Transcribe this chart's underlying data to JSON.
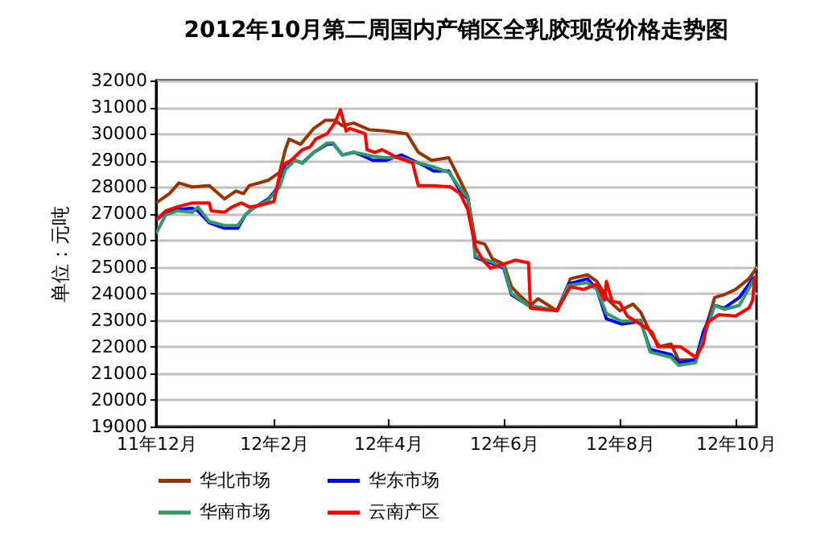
{
  "chart_data": {
    "type": "line",
    "title": "2012年10月第二周国内产销区全乳胶现货价格走势图",
    "ylabel": "单位：元吨",
    "xlim": [
      "2011-12-01",
      "2012-10-12"
    ],
    "xticks": [
      {
        "value": "2011-12-01",
        "label": "11年12月"
      },
      {
        "value": "2012-02-01",
        "label": "12年2月"
      },
      {
        "value": "2012-04-01",
        "label": "12年4月"
      },
      {
        "value": "2012-06-01",
        "label": "12年6月"
      },
      {
        "value": "2012-08-01",
        "label": "12年8月"
      },
      {
        "value": "2012-10-01",
        "label": "12年10月"
      }
    ],
    "ylim": [
      19000,
      32000
    ],
    "yticks": [
      19000,
      20000,
      21000,
      22000,
      23000,
      24000,
      25000,
      26000,
      27000,
      28000,
      29000,
      30000,
      31000,
      32000
    ],
    "grid": "y",
    "legend": "bottom",
    "marker": "none",
    "line_style": "solid",
    "series": [
      {
        "name": "华北市场",
        "color": "#993300",
        "x": [
          "2011-12-01",
          "2011-12-08",
          "2011-12-13",
          "2011-12-20",
          "2011-12-29",
          "2012-01-06",
          "2012-01-12",
          "2012-01-16",
          "2012-01-19",
          "2012-01-29",
          "2012-02-04",
          "2012-02-07",
          "2012-02-09",
          "2012-02-15",
          "2012-02-22",
          "2012-02-28",
          "2012-03-04",
          "2012-03-08",
          "2012-03-14",
          "2012-03-22",
          "2012-03-31",
          "2012-04-11",
          "2012-04-17",
          "2012-04-24",
          "2012-05-03",
          "2012-05-09",
          "2012-05-13",
          "2012-05-17",
          "2012-05-22",
          "2012-05-26",
          "2012-06-01",
          "2012-06-05",
          "2012-06-09",
          "2012-06-15",
          "2012-06-19",
          "2012-06-29",
          "2012-07-03",
          "2012-07-06",
          "2012-07-15",
          "2012-07-20",
          "2012-07-26",
          "2012-08-01",
          "2012-08-08",
          "2012-08-12",
          "2012-08-17",
          "2012-08-22",
          "2012-08-28",
          "2012-09-01",
          "2012-09-10",
          "2012-09-14",
          "2012-09-20",
          "2012-09-25",
          "2012-10-01",
          "2012-10-08",
          "2012-10-12"
        ],
        "values": [
          27400,
          27750,
          28150,
          28000,
          28050,
          27550,
          27850,
          27750,
          28050,
          28250,
          28550,
          29400,
          29800,
          29600,
          30200,
          30500,
          30500,
          30300,
          30400,
          30150,
          30100,
          30000,
          29300,
          29000,
          29100,
          28250,
          27650,
          25950,
          25850,
          25300,
          25100,
          24250,
          23950,
          23550,
          23800,
          23350,
          23900,
          24550,
          24700,
          24450,
          23750,
          23350,
          23600,
          23300,
          22550,
          22000,
          22100,
          21500,
          21500,
          22400,
          23850,
          23950,
          24150,
          24550,
          24950
        ]
      },
      {
        "name": "华东市场",
        "color": "#0000ff",
        "x": [
          "2011-12-01",
          "2011-12-06",
          "2011-12-12",
          "2011-12-20",
          "2011-12-23",
          "2011-12-29",
          "2012-01-06",
          "2012-01-13",
          "2012-01-17",
          "2012-01-20",
          "2012-01-29",
          "2012-02-04",
          "2012-02-07",
          "2012-02-12",
          "2012-02-16",
          "2012-02-22",
          "2012-02-29",
          "2012-03-03",
          "2012-03-08",
          "2012-03-14",
          "2012-03-18",
          "2012-03-24",
          "2012-03-31",
          "2012-04-08",
          "2012-04-14",
          "2012-04-20",
          "2012-04-25",
          "2012-05-03",
          "2012-05-09",
          "2012-05-13",
          "2012-05-16",
          "2012-05-17",
          "2012-05-25",
          "2012-06-01",
          "2012-06-05",
          "2012-06-14",
          "2012-06-29",
          "2012-07-05",
          "2012-07-15",
          "2012-07-20",
          "2012-07-25",
          "2012-08-02",
          "2012-08-12",
          "2012-08-17",
          "2012-08-28",
          "2012-09-01",
          "2012-09-10",
          "2012-09-14",
          "2012-09-20",
          "2012-09-25",
          "2012-10-03",
          "2012-10-10",
          "2012-10-12"
        ],
        "values": [
          26750,
          27050,
          27150,
          27200,
          27100,
          26650,
          26450,
          26450,
          26950,
          27150,
          27550,
          28050,
          28850,
          29000,
          28900,
          29300,
          29600,
          29650,
          29200,
          29300,
          29200,
          29000,
          29000,
          29200,
          29000,
          28800,
          28600,
          28600,
          27850,
          27550,
          26150,
          25350,
          25150,
          24950,
          23950,
          23550,
          23350,
          24350,
          24550,
          24150,
          23050,
          22850,
          22950,
          21900,
          21700,
          21400,
          21500,
          22550,
          23550,
          23450,
          23850,
          24550,
          24650
        ]
      },
      {
        "name": "华南市场",
        "color": "#339966",
        "x": [
          "2011-12-01",
          "2011-12-06",
          "2011-12-12",
          "2011-12-20",
          "2011-12-23",
          "2011-12-29",
          "2012-01-06",
          "2012-01-13",
          "2012-01-17",
          "2012-01-20",
          "2012-01-29",
          "2012-02-04",
          "2012-02-07",
          "2012-02-12",
          "2012-02-16",
          "2012-02-22",
          "2012-02-29",
          "2012-03-03",
          "2012-03-08",
          "2012-03-14",
          "2012-03-18",
          "2012-03-24",
          "2012-03-31",
          "2012-04-08",
          "2012-04-14",
          "2012-04-20",
          "2012-04-25",
          "2012-05-03",
          "2012-05-09",
          "2012-05-13",
          "2012-05-16",
          "2012-05-17",
          "2012-05-25",
          "2012-06-01",
          "2012-06-05",
          "2012-06-14",
          "2012-06-29",
          "2012-07-05",
          "2012-07-15",
          "2012-07-20",
          "2012-07-25",
          "2012-08-02",
          "2012-08-12",
          "2012-08-17",
          "2012-08-28",
          "2012-09-01",
          "2012-09-10",
          "2012-09-14",
          "2012-09-20",
          "2012-09-25",
          "2012-10-03",
          "2012-10-10",
          "2012-10-12"
        ],
        "values": [
          26250,
          26950,
          27100,
          27050,
          27250,
          26700,
          26550,
          26550,
          26950,
          27150,
          27500,
          28000,
          28650,
          29000,
          28900,
          29300,
          29650,
          29650,
          29200,
          29300,
          29250,
          29150,
          29100,
          29100,
          28950,
          28850,
          28750,
          28550,
          27950,
          27600,
          26200,
          25400,
          25200,
          25000,
          24000,
          23550,
          23350,
          24300,
          24400,
          24150,
          23250,
          22950,
          23000,
          21800,
          21600,
          21300,
          21400,
          22300,
          23550,
          23400,
          23550,
          24450,
          24650
        ]
      },
      {
        "name": "云南产区",
        "color": "#ff0000",
        "x": [
          "2011-12-01",
          "2011-12-06",
          "2011-12-12",
          "2011-12-20",
          "2011-12-29",
          "2011-12-30",
          "2012-01-06",
          "2012-01-10",
          "2012-01-15",
          "2012-01-19",
          "2012-01-24",
          "2012-02-01",
          "2012-02-05",
          "2012-02-10",
          "2012-02-16",
          "2012-02-20",
          "2012-02-23",
          "2012-02-29",
          "2012-03-04",
          "2012-03-07",
          "2012-03-10",
          "2012-03-12",
          "2012-03-20",
          "2012-03-21",
          "2012-03-25",
          "2012-03-29",
          "2012-04-06",
          "2012-04-14",
          "2012-04-17",
          "2012-04-25",
          "2012-05-04",
          "2012-05-09",
          "2012-05-13",
          "2012-05-17",
          "2012-05-21",
          "2012-05-25",
          "2012-06-01",
          "2012-06-07",
          "2012-06-14",
          "2012-06-15",
          "2012-06-21",
          "2012-06-29",
          "2012-07-02",
          "2012-07-06",
          "2012-07-13",
          "2012-07-20",
          "2012-07-24",
          "2012-07-25",
          "2012-07-28",
          "2012-08-01",
          "2012-08-05",
          "2012-08-14",
          "2012-08-18",
          "2012-08-21",
          "2012-08-25",
          "2012-09-02",
          "2012-09-10",
          "2012-09-14",
          "2012-09-16",
          "2012-09-22",
          "2012-10-01",
          "2012-10-08",
          "2012-10-10",
          "2012-10-11"
        ],
        "values": [
          26750,
          27100,
          27250,
          27400,
          27400,
          27100,
          27050,
          27250,
          27400,
          27250,
          27300,
          27450,
          28800,
          29000,
          29400,
          29500,
          29800,
          30000,
          30400,
          30900,
          30100,
          30200,
          30000,
          29400,
          29300,
          29400,
          29100,
          28900,
          28050,
          28050,
          28000,
          27750,
          27150,
          25750,
          25250,
          24950,
          25100,
          25250,
          25150,
          23450,
          23400,
          23350,
          23750,
          24250,
          24150,
          24350,
          23750,
          24450,
          23700,
          23650,
          23150,
          22750,
          22550,
          22000,
          22000,
          22000,
          21600,
          22100,
          22900,
          23200,
          23150,
          23450,
          23750,
          24650
        ]
      }
    ]
  }
}
